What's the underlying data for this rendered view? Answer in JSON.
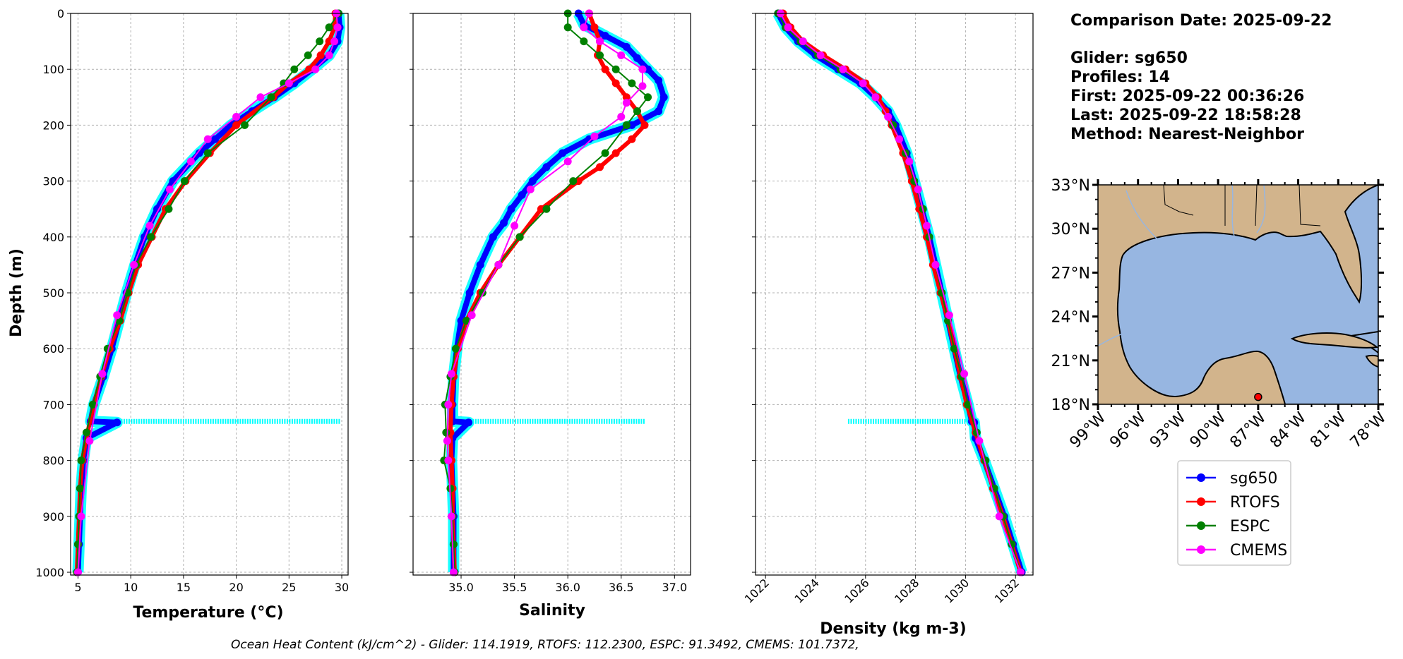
{
  "ylabel": "Depth (m)",
  "footer": "Ocean Heat Content (kJ/cm^2) - Glider: 114.1919,  RTOFS: 112.2300,  ESPC: 91.3492,  CMEMS: 101.7372,",
  "info": {
    "comparison_date": "Comparison Date: 2025-09-22",
    "glider": "Glider: sg650",
    "profiles": "Profiles: 14",
    "first": "First: 2025-09-22 00:36:26",
    "last": "Last: 2025-09-22 18:58:28",
    "method": "Method: Nearest-Neighbor"
  },
  "map": {
    "lat_labels": [
      "33°N",
      "30°N",
      "27°N",
      "24°N",
      "21°N",
      "18°N"
    ],
    "lon_labels": [
      "99°W",
      "96°W",
      "93°W",
      "90°W",
      "87°W",
      "84°W",
      "81°W",
      "78°W"
    ],
    "land_color": "#d2b48c",
    "ocean_color": "#97b6e1",
    "glider_position": {
      "lon": -87.0,
      "lat": 18.5
    }
  },
  "colors": {
    "sg650": "#0000ff",
    "RTOFS": "#ff0000",
    "ESPC": "#008000",
    "CMEMS": "#ff00ff",
    "raw": "#00ffff"
  },
  "chart_data": [
    {
      "type": "line",
      "xlabel": "Temperature (°C)",
      "xlim": [
        4.3,
        30.6
      ],
      "ylim": [
        1005,
        0
      ],
      "x_ticks": [
        "5",
        "10",
        "15",
        "20",
        "25",
        "30"
      ],
      "y_ticks": [
        "0",
        "100",
        "200",
        "300",
        "400",
        "500",
        "600",
        "700",
        "800",
        "900",
        "1000"
      ],
      "grid": true,
      "series": [
        {
          "name": "sg650",
          "depth": [
            0,
            25,
            50,
            75,
            100,
            125,
            150,
            175,
            200,
            225,
            250,
            300,
            350,
            400,
            450,
            500,
            550,
            600,
            650,
            700,
            730,
            732,
            760,
            800,
            850,
            900,
            950,
            1000
          ],
          "values": [
            29.7,
            29.8,
            29.6,
            28.8,
            27.2,
            25.5,
            23.6,
            21.5,
            19.5,
            18.0,
            16.5,
            14.0,
            12.5,
            11.3,
            10.4,
            9.6,
            8.9,
            8.2,
            7.4,
            6.5,
            6.2,
            8.7,
            5.8,
            5.5,
            5.3,
            5.2,
            5.1,
            5.0
          ]
        },
        {
          "name": "RTOFS",
          "depth": [
            0,
            25,
            50,
            75,
            100,
            125,
            150,
            200,
            250,
            300,
            350,
            400,
            450,
            500,
            550,
            600,
            650,
            700,
            750,
            800,
            850,
            900,
            950,
            1000
          ],
          "values": [
            29.4,
            29.3,
            28.8,
            28.0,
            26.9,
            25.0,
            23.5,
            20.0,
            17.5,
            15.2,
            13.3,
            12.0,
            10.7,
            9.8,
            9.0,
            8.0,
            7.2,
            6.5,
            5.9,
            5.4,
            5.2,
            5.1,
            5.0,
            4.9
          ]
        },
        {
          "name": "ESPC",
          "depth": [
            0,
            25,
            50,
            75,
            100,
            125,
            150,
            200,
            250,
            300,
            350,
            400,
            450,
            500,
            550,
            600,
            650,
            700,
            750,
            800,
            850,
            900,
            950,
            1000
          ],
          "values": [
            29.7,
            28.8,
            27.9,
            26.8,
            25.5,
            24.5,
            23.3,
            20.8,
            17.3,
            15.1,
            13.6,
            11.9,
            10.5,
            9.7,
            8.9,
            7.8,
            7.1,
            6.4,
            5.8,
            5.3,
            5.2,
            5.1,
            5.0,
            4.9
          ]
        },
        {
          "name": "CMEMS",
          "depth": [
            0,
            25,
            50,
            75,
            100,
            125,
            150,
            185,
            225,
            265,
            315,
            380,
            450,
            540,
            645,
            765,
            900,
            1000
          ],
          "values": [
            29.5,
            29.6,
            29.3,
            28.8,
            27.5,
            25.0,
            22.3,
            20.0,
            17.3,
            15.7,
            13.7,
            11.8,
            10.3,
            8.7,
            7.3,
            6.1,
            5.3,
            5.0
          ]
        }
      ]
    },
    {
      "type": "line",
      "xlabel": "Salinity",
      "xlim": [
        34.55,
        37.15
      ],
      "ylim": [
        1005,
        0
      ],
      "x_ticks": [
        "35.0",
        "35.5",
        "36.0",
        "36.5",
        "37.0"
      ],
      "grid": true,
      "series": [
        {
          "name": "sg650",
          "depth": [
            0,
            20,
            40,
            60,
            80,
            100,
            120,
            150,
            175,
            200,
            225,
            250,
            275,
            300,
            325,
            350,
            375,
            400,
            450,
            500,
            550,
            600,
            650,
            700,
            730,
            732,
            760,
            800,
            850,
            900,
            950,
            1000
          ],
          "values": [
            36.1,
            36.15,
            36.35,
            36.55,
            36.65,
            36.75,
            36.85,
            36.9,
            36.85,
            36.6,
            36.2,
            35.95,
            35.8,
            35.67,
            35.57,
            35.47,
            35.4,
            35.3,
            35.18,
            35.08,
            35.0,
            34.96,
            34.93,
            34.92,
            34.92,
            35.07,
            34.92,
            34.91,
            34.92,
            34.93,
            34.93,
            34.93
          ]
        },
        {
          "name": "RTOFS",
          "depth": [
            0,
            25,
            50,
            75,
            100,
            125,
            150,
            175,
            200,
            225,
            250,
            275,
            300,
            350,
            400,
            450,
            500,
            550,
            600,
            650,
            700,
            750,
            800,
            850,
            900,
            950,
            1000
          ],
          "values": [
            36.2,
            36.25,
            36.3,
            36.28,
            36.35,
            36.45,
            36.55,
            36.65,
            36.72,
            36.6,
            36.45,
            36.3,
            36.1,
            35.75,
            35.55,
            35.35,
            35.18,
            35.05,
            34.97,
            34.93,
            34.91,
            34.9,
            34.91,
            34.92,
            34.92,
            34.93,
            34.94
          ]
        },
        {
          "name": "ESPC",
          "depth": [
            0,
            25,
            50,
            75,
            100,
            125,
            150,
            175,
            200,
            250,
            300,
            350,
            400,
            450,
            500,
            550,
            600,
            650,
            700,
            750,
            800,
            850,
            900,
            950,
            1000
          ],
          "values": [
            36.0,
            36.0,
            36.15,
            36.3,
            36.45,
            36.6,
            36.75,
            36.65,
            36.55,
            36.35,
            36.05,
            35.8,
            35.55,
            35.35,
            35.2,
            35.05,
            34.95,
            34.9,
            34.85,
            34.86,
            34.84,
            34.9,
            34.92,
            34.93,
            34.94
          ]
        },
        {
          "name": "CMEMS",
          "depth": [
            0,
            25,
            50,
            75,
            100,
            130,
            160,
            185,
            220,
            265,
            315,
            380,
            450,
            540,
            645,
            700,
            765,
            800,
            900,
            1000
          ],
          "values": [
            36.2,
            36.15,
            36.3,
            36.5,
            36.7,
            36.7,
            36.55,
            36.5,
            36.25,
            36.0,
            35.65,
            35.5,
            35.35,
            35.1,
            34.91,
            34.88,
            34.87,
            34.88,
            34.91,
            34.93
          ]
        }
      ]
    },
    {
      "type": "line",
      "xlabel": "Density (kg m-3)",
      "xlim": [
        1021.6,
        1032.7
      ],
      "ylim": [
        1005,
        0
      ],
      "x_ticks": [
        "1022",
        "1024",
        "1026",
        "1028",
        "1030",
        "1032"
      ],
      "grid": true,
      "series": [
        {
          "name": "sg650",
          "depth": [
            0,
            25,
            50,
            75,
            100,
            125,
            150,
            175,
            200,
            250,
            300,
            350,
            400,
            450,
            500,
            550,
            600,
            650,
            700,
            730,
            732,
            760,
            800,
            850,
            900,
            950,
            1000
          ],
          "values": [
            1022.5,
            1022.8,
            1023.3,
            1024.0,
            1024.9,
            1025.8,
            1026.4,
            1026.9,
            1027.2,
            1027.65,
            1027.95,
            1028.25,
            1028.55,
            1028.8,
            1029.05,
            1029.3,
            1029.55,
            1029.8,
            1030.1,
            1030.25,
            1030.35,
            1030.4,
            1030.75,
            1031.15,
            1031.55,
            1031.9,
            1032.25
          ]
        },
        {
          "name": "RTOFS",
          "depth": [
            0,
            25,
            50,
            75,
            100,
            125,
            150,
            175,
            200,
            250,
            300,
            350,
            400,
            450,
            500,
            550,
            600,
            650,
            700,
            750,
            800,
            850,
            900,
            950,
            1000
          ],
          "values": [
            1022.7,
            1023.0,
            1023.5,
            1024.3,
            1025.2,
            1026.0,
            1026.5,
            1026.8,
            1027.05,
            1027.5,
            1027.85,
            1028.15,
            1028.45,
            1028.7,
            1029.0,
            1029.3,
            1029.55,
            1029.8,
            1030.05,
            1030.4,
            1030.75,
            1031.1,
            1031.5,
            1031.85,
            1032.2
          ]
        },
        {
          "name": "ESPC",
          "depth": [
            0,
            25,
            50,
            75,
            100,
            125,
            150,
            200,
            250,
            300,
            350,
            400,
            450,
            500,
            550,
            600,
            650,
            700,
            750,
            800,
            850,
            900,
            950,
            1000
          ],
          "values": [
            1022.5,
            1022.8,
            1023.4,
            1024.1,
            1025.0,
            1025.9,
            1026.4,
            1027.1,
            1027.6,
            1027.95,
            1028.3,
            1028.55,
            1028.8,
            1029.05,
            1029.3,
            1029.55,
            1029.85,
            1030.1,
            1030.45,
            1030.8,
            1031.15,
            1031.5,
            1031.85,
            1032.2
          ]
        },
        {
          "name": "CMEMS",
          "depth": [
            0,
            25,
            50,
            75,
            100,
            125,
            150,
            185,
            225,
            265,
            315,
            380,
            450,
            540,
            645,
            765,
            900,
            1000
          ],
          "values": [
            1022.6,
            1022.9,
            1023.5,
            1024.2,
            1025.1,
            1025.9,
            1026.4,
            1026.9,
            1027.35,
            1027.75,
            1028.1,
            1028.45,
            1028.8,
            1029.35,
            1029.95,
            1030.55,
            1031.35,
            1032.2
          ]
        }
      ],
      "raw_glider_spike": {
        "depth": 730,
        "from": 1025.3,
        "to": 1030.3
      }
    }
  ],
  "raw_glider_spikes": {
    "temperature": [
      5.8,
      29.9
    ],
    "salinity": [
      34.9,
      36.72
    ],
    "depth": 730
  },
  "legend": [
    "sg650",
    "RTOFS",
    "ESPC",
    "CMEMS"
  ]
}
